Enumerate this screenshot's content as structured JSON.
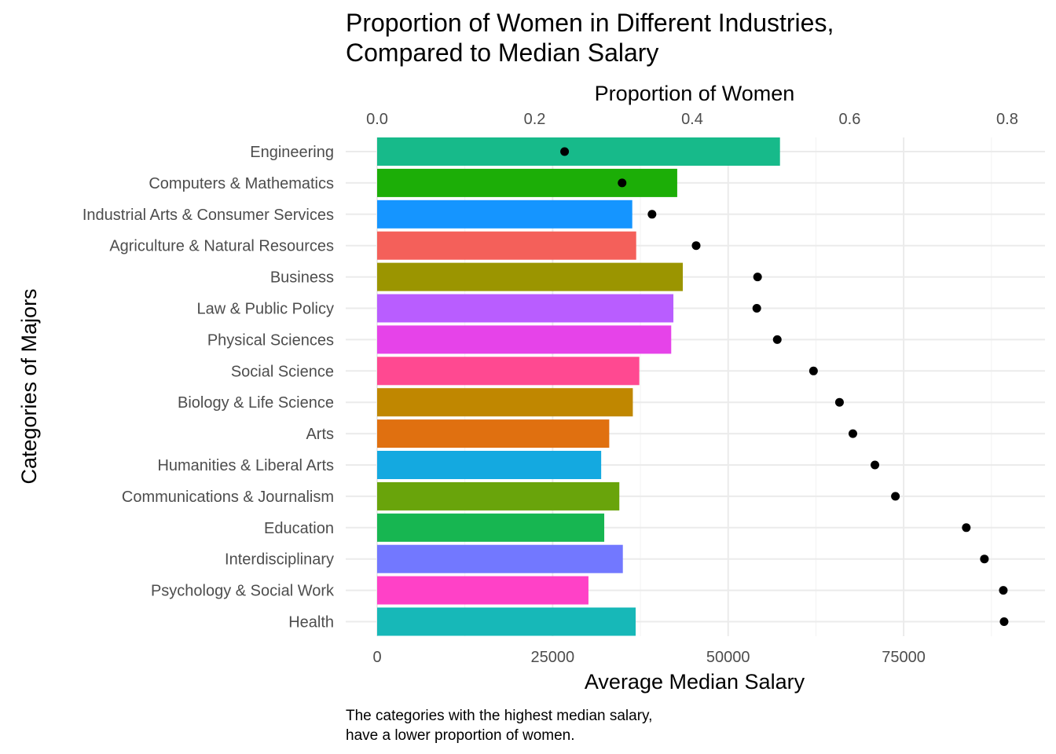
{
  "chart_data": {
    "type": "bar",
    "title_lines": [
      "Proportion of Women in Different Industries,",
      "Compared to Median Salary"
    ],
    "xlabel_top": "Proportion of Women",
    "xlabel_bottom": "Average Median Salary",
    "ylabel": "Categories of Majors",
    "caption_lines": [
      "The categories with the highest median salary,",
      "have a lower proportion of women."
    ],
    "salary_axis": {
      "lim": [
        0,
        92000
      ],
      "ticks": [
        0,
        25000,
        50000,
        75000
      ],
      "tick_labels": [
        "0",
        "25000",
        "50000",
        "75000"
      ]
    },
    "proportion_axis": {
      "lim": [
        0,
        0.82
      ],
      "ticks": [
        0,
        0.2,
        0.4,
        0.6,
        0.8
      ],
      "tick_labels": [
        "0.0",
        "0.2",
        "0.4",
        "0.6",
        "0.8"
      ]
    },
    "grid": true,
    "legend": "none",
    "categories": [
      "Engineering",
      "Computers & Mathematics",
      "Industrial Arts & Consumer Services",
      "Agriculture & Natural Resources",
      "Business",
      "Law & Public Policy",
      "Physical Sciences",
      "Social Science",
      "Biology & Life Science",
      "Arts",
      "Humanities & Liberal Arts",
      "Communications & Journalism",
      "Education",
      "Interdisciplinary",
      "Psychology & Social Work",
      "Health"
    ],
    "series": [
      {
        "kind": "bar",
        "axis": "salary",
        "values": [
          57383,
          42745,
          36342,
          36900,
          43539,
          42200,
          41890,
          37344,
          36421,
          33062,
          31913,
          34500,
          32350,
          35000,
          30100,
          36825
        ]
      },
      {
        "kind": "point",
        "axis": "proportion",
        "values": [
          0.238,
          0.311,
          0.349,
          0.405,
          0.483,
          0.482,
          0.508,
          0.554,
          0.587,
          0.604,
          0.632,
          0.658,
          0.748,
          0.771,
          0.795,
          0.796
        ]
      }
    ],
    "bar_colors": [
      "#17BA8A",
      "#1CAE07",
      "#1595FF",
      "#F4605A",
      "#9B9500",
      "#B95DFF",
      "#E643E9",
      "#FF4991",
      "#C08700",
      "#E07010",
      "#14A9E0",
      "#69A40B",
      "#17B651",
      "#7278FF",
      "#FF41C7",
      "#17B8B8"
    ],
    "point_color": "#000000"
  }
}
